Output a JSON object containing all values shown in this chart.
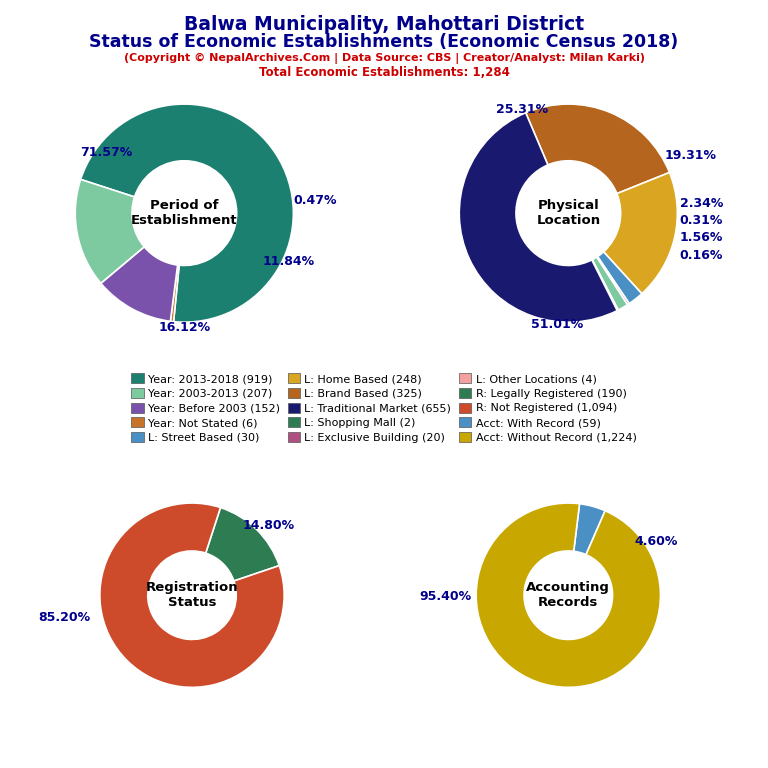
{
  "title_line1": "Balwa Municipality, Mahottari District",
  "title_line2": "Status of Economic Establishments (Economic Census 2018)",
  "subtitle1": "(Copyright © NepalArchives.Com | Data Source: CBS | Creator/Analyst: Milan Karki)",
  "subtitle2": "Total Economic Establishments: 1,284",
  "pie1_label": "Period of\nEstablishment",
  "pie1_values": [
    71.57,
    0.47,
    11.84,
    16.12
  ],
  "pie1_colors": [
    "#1B8070",
    "#C8732A",
    "#7B52AB",
    "#7DC9A0"
  ],
  "pie1_startangle": 162,
  "pie2_label": "Physical\nLocation",
  "pie2_values": [
    25.31,
    19.31,
    2.34,
    0.31,
    1.56,
    0.16,
    51.01
  ],
  "pie2_colors": [
    "#B5651D",
    "#DAA520",
    "#4A90C4",
    "#B05080",
    "#7DC9A0",
    "#2E8B57",
    "#191970"
  ],
  "pie2_startangle": 113,
  "pie3_label": "Registration\nStatus",
  "pie3_values": [
    14.8,
    85.2
  ],
  "pie3_colors": [
    "#2E7D52",
    "#CD4A2A"
  ],
  "pie3_startangle": 72,
  "pie4_label": "Accounting\nRecords",
  "pie4_values": [
    4.6,
    95.4
  ],
  "pie4_colors": [
    "#4A90C4",
    "#C8A800"
  ],
  "pie4_startangle": 83,
  "legend_items": [
    {
      "label": "Year: 2013-2018 (919)",
      "color": "#1B8070"
    },
    {
      "label": "Year: 2003-2013 (207)",
      "color": "#7DC9A0"
    },
    {
      "label": "Year: Before 2003 (152)",
      "color": "#7B52AB"
    },
    {
      "label": "Year: Not Stated (6)",
      "color": "#C8732A"
    },
    {
      "label": "L: Street Based (30)",
      "color": "#4A90C4"
    },
    {
      "label": "L: Home Based (248)",
      "color": "#DAA520"
    },
    {
      "label": "L: Brand Based (325)",
      "color": "#B5651D"
    },
    {
      "label": "L: Traditional Market (655)",
      "color": "#191970"
    },
    {
      "label": "L: Shopping Mall (2)",
      "color": "#2E7D52"
    },
    {
      "label": "L: Exclusive Building (20)",
      "color": "#B05080"
    },
    {
      "label": "L: Other Locations (4)",
      "color": "#F4A0A0"
    },
    {
      "label": "R: Legally Registered (190)",
      "color": "#2E7D52"
    },
    {
      "label": "R: Not Registered (1,094)",
      "color": "#CD4A2A"
    },
    {
      "label": "Acct: With Record (59)",
      "color": "#4A90C4"
    },
    {
      "label": "Acct: Without Record (1,224)",
      "color": "#C8A800"
    }
  ],
  "bg_color": "#FFFFFF",
  "title_color": "#00008B",
  "subtitle_color": "#CC0000",
  "label_color": "#00008B"
}
